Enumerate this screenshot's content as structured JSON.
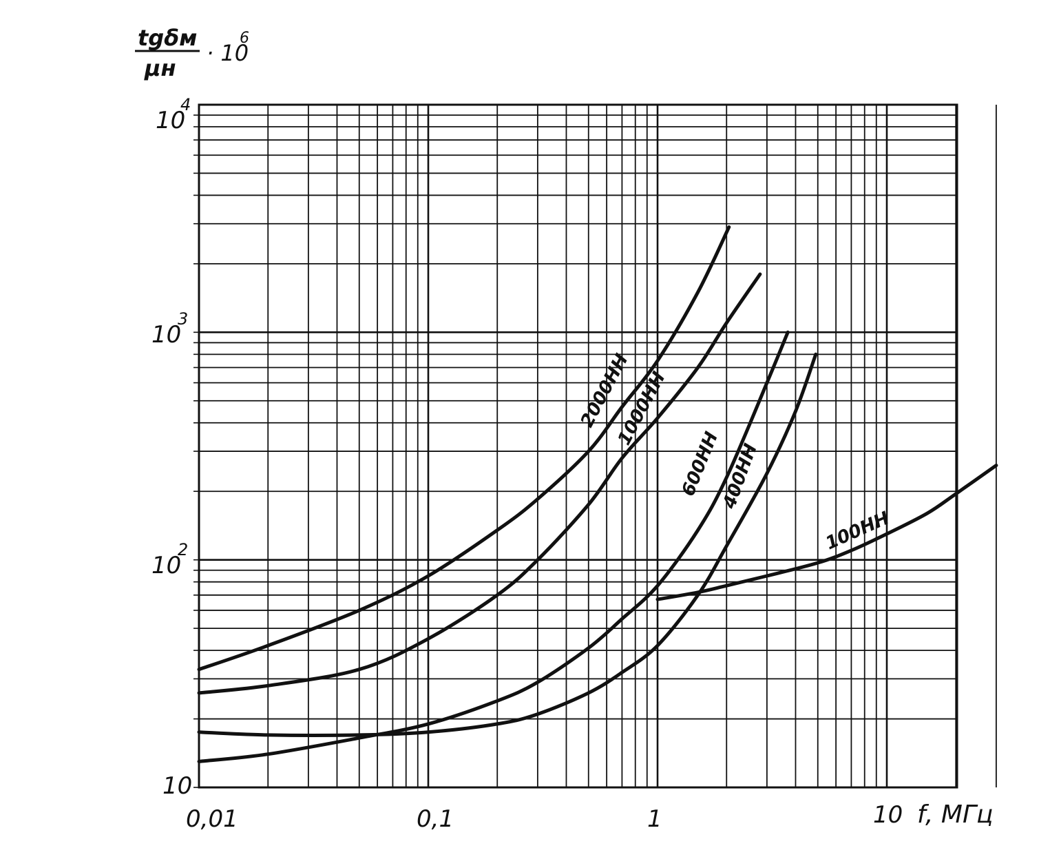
{
  "chart_data": {
    "type": "line",
    "x_scale": "log",
    "y_scale": "log",
    "xlim": [
      0.01,
      30
    ],
    "ylim": [
      10,
      10000
    ],
    "grid": true,
    "x_tick_values": [
      0.01,
      0.1,
      1,
      10
    ],
    "x_tick_labels": [
      "0,01",
      "0,1",
      "1",
      "10"
    ],
    "y_tick_values": [
      10,
      100,
      1000,
      10000
    ],
    "y_tick_labels": {
      "y10": "10",
      "y100_base": "10",
      "y100_exp": "2",
      "y1000_base": "10",
      "y1000_exp": "3",
      "y10000_base": "10",
      "y10000_exp": "4"
    },
    "xlabel": "f, МГц",
    "ylabel": {
      "numerator": "tgδм",
      "denominator": "μн",
      "multiplier": "· 10",
      "exponent": "6"
    },
    "series": [
      {
        "name": "2000НН",
        "x": [
          0.01,
          0.02,
          0.05,
          0.1,
          0.2,
          0.3,
          0.5,
          0.7,
          1.0,
          1.5,
          2.05
        ],
        "y": [
          33,
          42,
          60,
          85,
          135,
          185,
          300,
          470,
          750,
          1500,
          2900
        ]
      },
      {
        "name": "1000НН",
        "x": [
          0.01,
          0.02,
          0.05,
          0.1,
          0.2,
          0.3,
          0.5,
          0.7,
          1.0,
          1.5,
          2.0,
          2.8
        ],
        "y": [
          26,
          28,
          33,
          45,
          70,
          100,
          175,
          280,
          420,
          700,
          1100,
          1800
        ]
      },
      {
        "name": "600НН",
        "x": [
          0.01,
          0.02,
          0.05,
          0.1,
          0.2,
          0.3,
          0.5,
          0.7,
          1.0,
          1.5,
          2.0,
          3.0,
          3.7
        ],
        "y": [
          13,
          14,
          16.5,
          19,
          24,
          29,
          41,
          55,
          77,
          135,
          230,
          600,
          1000
        ]
      },
      {
        "name": "400НН",
        "x": [
          0.01,
          0.02,
          0.05,
          0.1,
          0.2,
          0.3,
          0.5,
          0.7,
          1.0,
          1.5,
          2.0,
          3.0,
          4.0,
          4.9
        ],
        "y": [
          17.5,
          17,
          17,
          17.5,
          19,
          21,
          26,
          32,
          42,
          70,
          115,
          240,
          450,
          800
        ]
      },
      {
        "name": "100НН",
        "x": [
          1.0,
          1.5,
          2.0,
          3.0,
          5.0,
          7.0,
          10.0,
          15.0,
          20.0,
          30.0
        ],
        "y": [
          67,
          72,
          77,
          85,
          97,
          110,
          130,
          160,
          195,
          260
        ]
      }
    ],
    "curve_labels": [
      "2000НН",
      "1000НН",
      "600НН",
      "400НН",
      "100НН"
    ],
    "line_color": "#111111",
    "grid_color": "#111111"
  }
}
